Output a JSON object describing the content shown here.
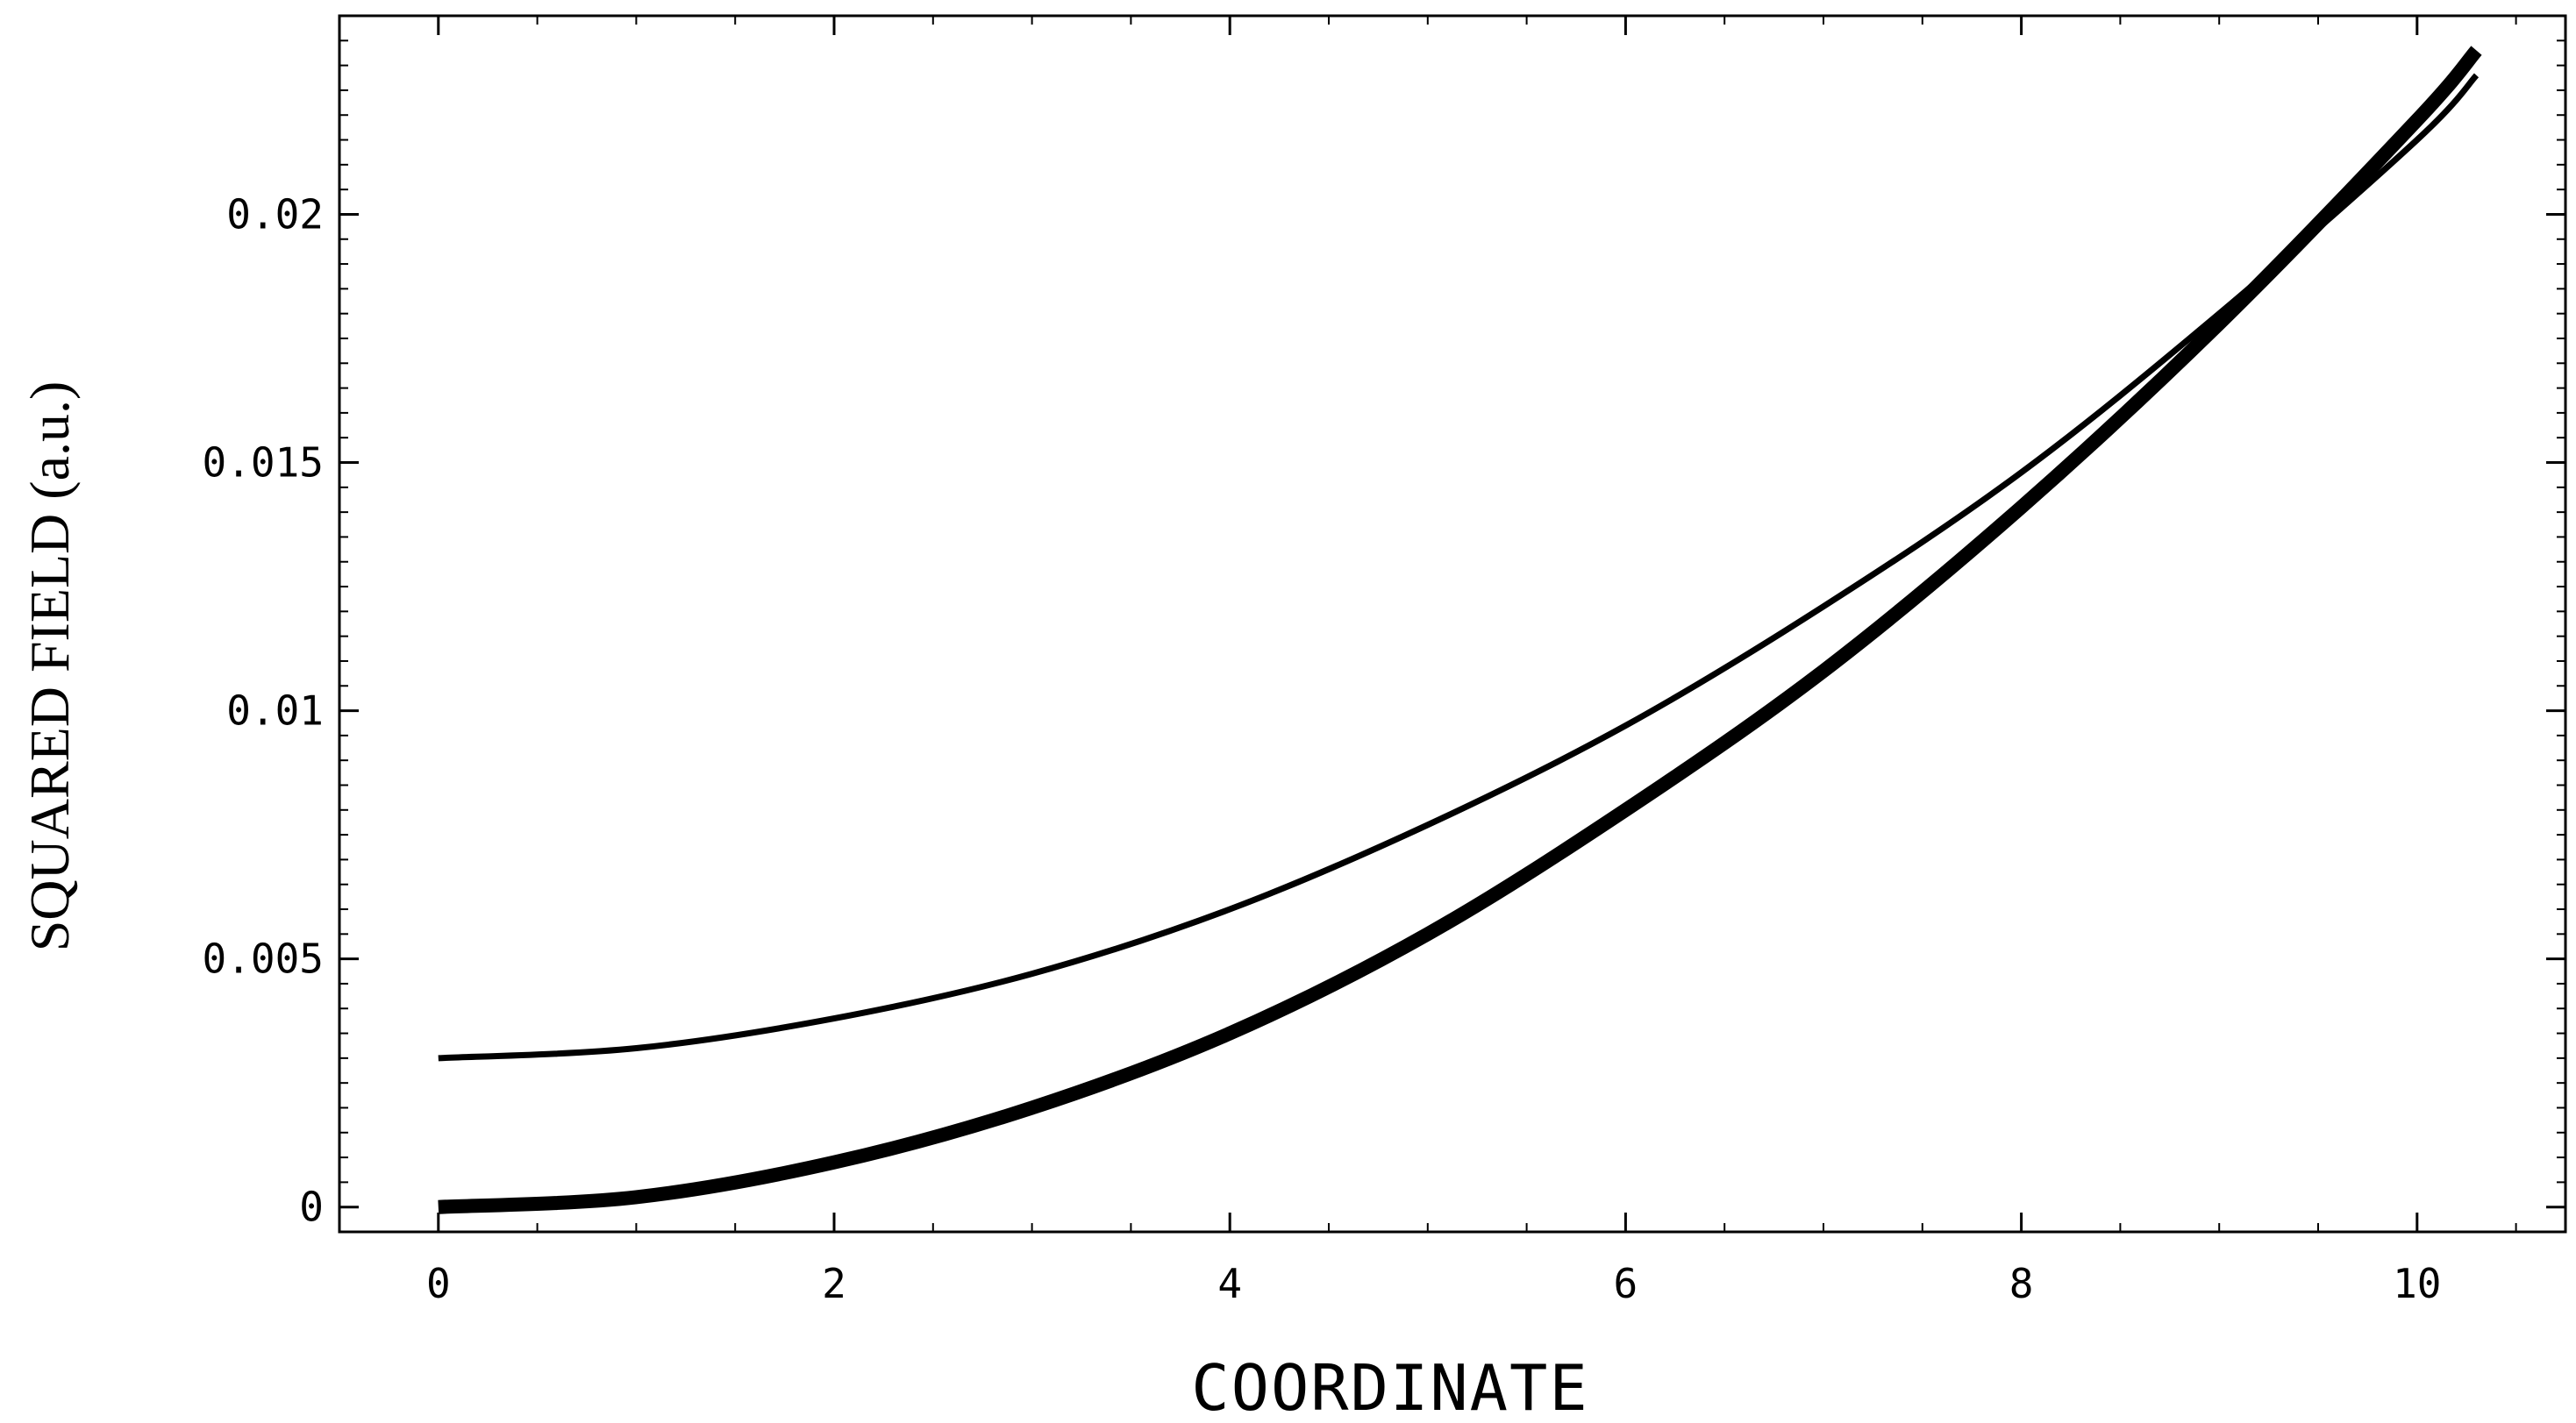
{
  "chart_data": {
    "type": "line",
    "title": "",
    "xlabel": "COORDINATE",
    "ylabel": "SQUARED FIELD (a.u.)",
    "xlim": [
      -0.5,
      10.75
    ],
    "ylim": [
      -0.0005,
      0.024
    ],
    "grid": false,
    "legend": "none",
    "x_ticks": [
      0,
      2,
      4,
      6,
      8,
      10
    ],
    "x_tick_labels": [
      "0",
      "2",
      "4",
      "6",
      "8",
      "10"
    ],
    "y_ticks": [
      0,
      0.005,
      0.01,
      0.015,
      0.02
    ],
    "y_tick_labels": [
      "0",
      "0.005",
      "0.01",
      "0.015",
      "0.02"
    ],
    "series": [
      {
        "style": "thin",
        "color": "#000000",
        "x": [
          0,
          1,
          2,
          3,
          4,
          5,
          6,
          7,
          8,
          9,
          10,
          10.3
        ],
        "y": [
          0.003,
          0.0032,
          0.0038,
          0.0047,
          0.006,
          0.0077,
          0.0097,
          0.0121,
          0.0148,
          0.018,
          0.0215,
          0.0228
        ]
      },
      {
        "style": "thick",
        "color": "#000000",
        "x": [
          0,
          1,
          2,
          3,
          4,
          5,
          6,
          7,
          8,
          9,
          10,
          10.3
        ],
        "y": [
          0.0,
          0.0002,
          0.0009,
          0.002,
          0.0035,
          0.0055,
          0.008,
          0.0108,
          0.0141,
          0.0178,
          0.0219,
          0.0233
        ]
      }
    ]
  }
}
